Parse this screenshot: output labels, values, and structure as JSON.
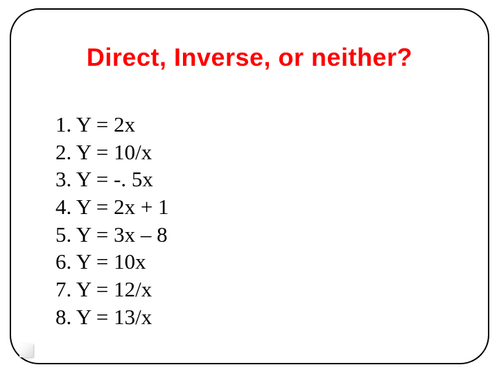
{
  "title": "Direct, Inverse, or neither?",
  "title_color": "#ff0000",
  "title_fontsize": 36,
  "title_fontweight": "bold",
  "item_color": "#000000",
  "item_fontsize": 31,
  "item_font": "Times New Roman",
  "frame": {
    "border_color": "#000000",
    "border_width": 2,
    "border_radius": 42,
    "background": "#ffffff"
  },
  "items": [
    {
      "n": "1.",
      "text": "Y = 2x"
    },
    {
      "n": "2.",
      "text": "Y = 10/x"
    },
    {
      "n": "3.",
      "text": "Y = -. 5x"
    },
    {
      "n": "4.",
      "text": "Y = 2x + 1"
    },
    {
      "n": "5.",
      "text": "Y = 3x – 8"
    },
    {
      "n": "6.",
      "text": "Y = 10x"
    },
    {
      "n": "7.",
      "text": "Y = 12/x"
    },
    {
      "n": "8.",
      "text": "Y = 13/x"
    }
  ]
}
